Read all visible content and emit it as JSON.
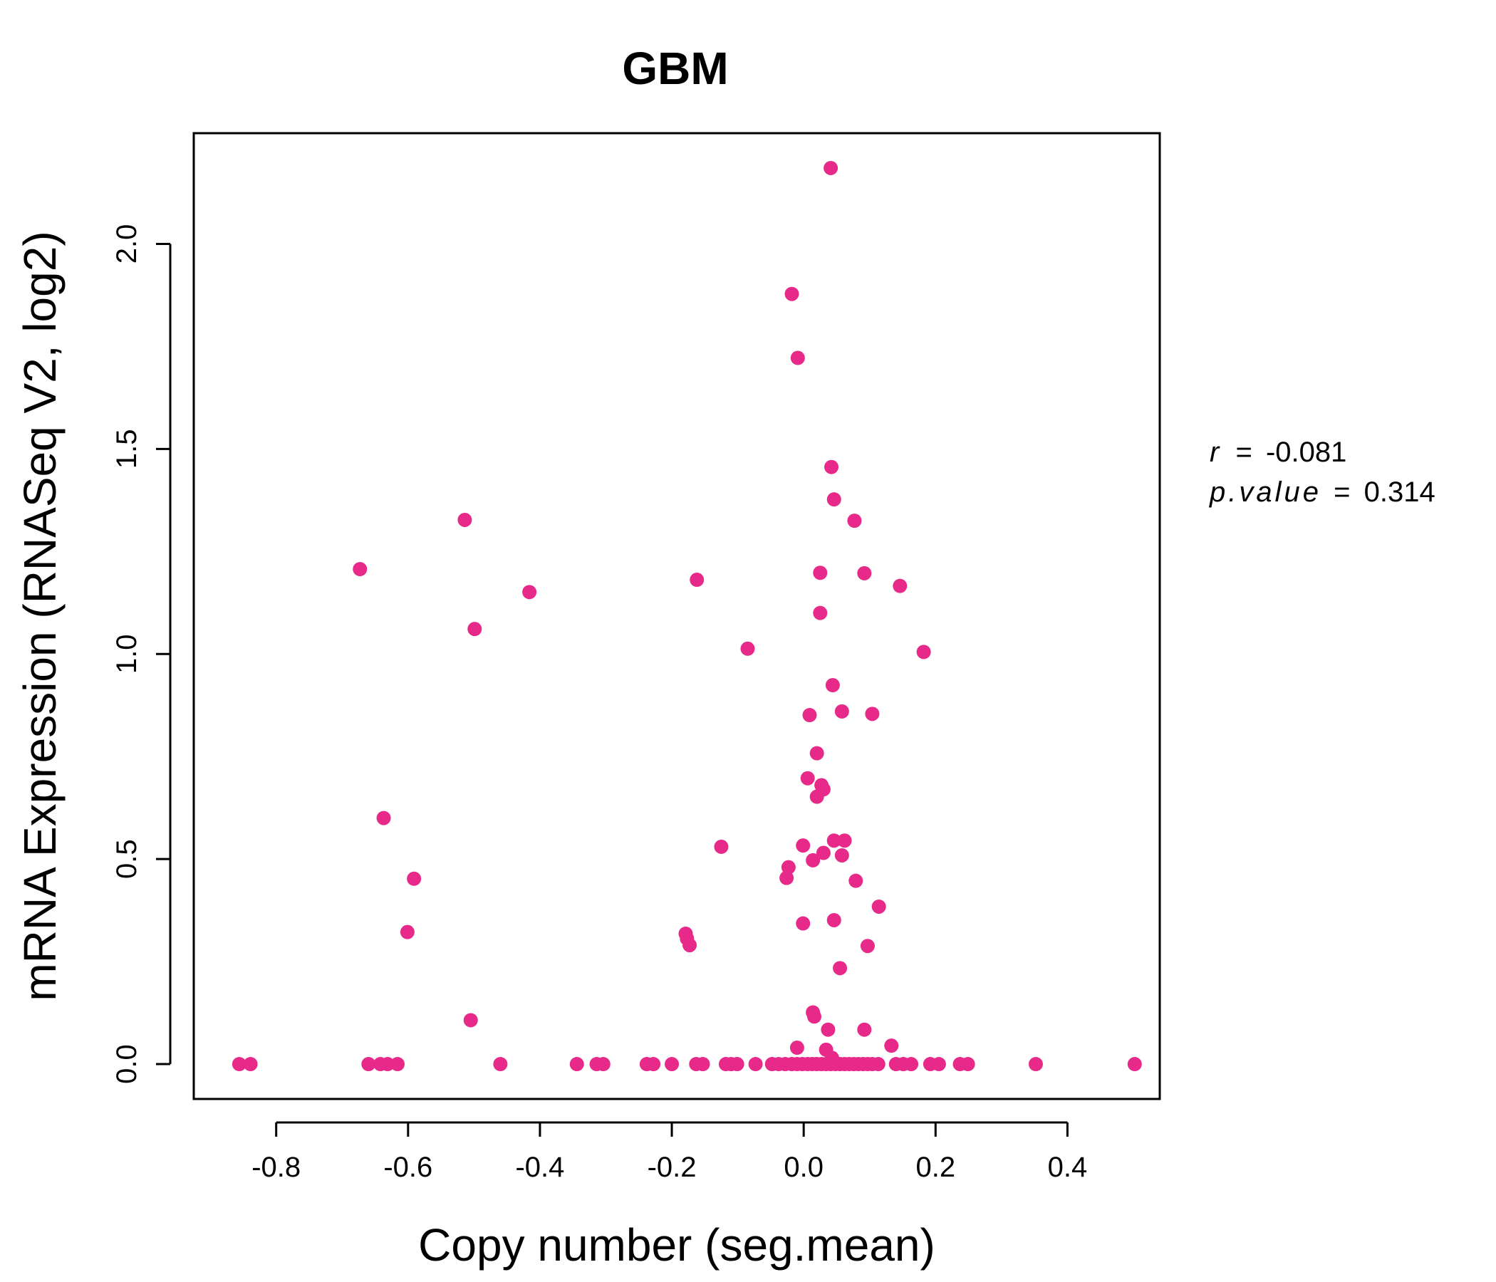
{
  "chart_data": {
    "type": "scatter",
    "title": "GBM",
    "xlabel": "Copy number (seg.mean)",
    "ylabel": "mRNA Expression (RNASeq V2, log2)",
    "xlim": [
      -0.925,
      0.54
    ],
    "ylim": [
      -0.085,
      2.27
    ],
    "xticks": [
      -0.8,
      -0.6,
      -0.4,
      -0.2,
      0.0,
      0.2,
      0.4
    ],
    "xtick_labels": [
      "-0.8",
      "-0.6",
      "-0.4",
      "-0.2",
      "0.0",
      "0.2",
      "0.4"
    ],
    "yticks": [
      0.0,
      0.5,
      1.0,
      1.5,
      2.0
    ],
    "ytick_labels": [
      "0.0",
      "0.5",
      "1.0",
      "1.5",
      "2.0"
    ],
    "grid": false,
    "point_color": "#E7298A",
    "annotations": {
      "r_label": "r",
      "r_value": "-0.081",
      "p_label": "p.value",
      "p_value": "0.314"
    },
    "points": [
      {
        "x": 0.041,
        "y": 2.185
      },
      {
        "x": -0.018,
        "y": 1.878
      },
      {
        "x": -0.009,
        "y": 1.722
      },
      {
        "x": 0.042,
        "y": 1.456
      },
      {
        "x": 0.046,
        "y": 1.377
      },
      {
        "x": 0.077,
        "y": 1.325
      },
      {
        "x": -0.514,
        "y": 1.327
      },
      {
        "x": -0.673,
        "y": 1.207
      },
      {
        "x": 0.025,
        "y": 1.198
      },
      {
        "x": 0.092,
        "y": 1.197
      },
      {
        "x": -0.162,
        "y": 1.181
      },
      {
        "x": 0.146,
        "y": 1.166
      },
      {
        "x": -0.416,
        "y": 1.151
      },
      {
        "x": 0.025,
        "y": 1.1
      },
      {
        "x": -0.499,
        "y": 1.061
      },
      {
        "x": -0.085,
        "y": 1.013
      },
      {
        "x": 0.182,
        "y": 1.005
      },
      {
        "x": 0.044,
        "y": 0.924
      },
      {
        "x": 0.058,
        "y": 0.86
      },
      {
        "x": 0.104,
        "y": 0.854
      },
      {
        "x": 0.009,
        "y": 0.851
      },
      {
        "x": 0.02,
        "y": 0.758
      },
      {
        "x": 0.006,
        "y": 0.697
      },
      {
        "x": 0.027,
        "y": 0.68
      },
      {
        "x": 0.03,
        "y": 0.67
      },
      {
        "x": 0.02,
        "y": 0.652
      },
      {
        "x": -0.637,
        "y": 0.6
      },
      {
        "x": 0.046,
        "y": 0.545
      },
      {
        "x": 0.062,
        "y": 0.545
      },
      {
        "x": -0.001,
        "y": 0.533
      },
      {
        "x": -0.125,
        "y": 0.53
      },
      {
        "x": 0.03,
        "y": 0.515
      },
      {
        "x": 0.058,
        "y": 0.509
      },
      {
        "x": 0.014,
        "y": 0.497
      },
      {
        "x": -0.023,
        "y": 0.48
      },
      {
        "x": -0.026,
        "y": 0.454
      },
      {
        "x": -0.591,
        "y": 0.452
      },
      {
        "x": 0.079,
        "y": 0.447
      },
      {
        "x": 0.114,
        "y": 0.384
      },
      {
        "x": 0.046,
        "y": 0.351
      },
      {
        "x": -0.001,
        "y": 0.343
      },
      {
        "x": -0.601,
        "y": 0.322
      },
      {
        "x": -0.179,
        "y": 0.318
      },
      {
        "x": -0.177,
        "y": 0.306
      },
      {
        "x": -0.173,
        "y": 0.29
      },
      {
        "x": 0.097,
        "y": 0.288
      },
      {
        "x": 0.055,
        "y": 0.234
      },
      {
        "x": 0.014,
        "y": 0.126
      },
      {
        "x": 0.016,
        "y": 0.116
      },
      {
        "x": -0.505,
        "y": 0.107
      },
      {
        "x": 0.037,
        "y": 0.084
      },
      {
        "x": 0.092,
        "y": 0.084
      },
      {
        "x": 0.133,
        "y": 0.045
      },
      {
        "x": -0.01,
        "y": 0.04
      },
      {
        "x": 0.034,
        "y": 0.035
      },
      {
        "x": 0.043,
        "y": 0.015
      },
      {
        "x": -0.856,
        "y": 0.0
      },
      {
        "x": -0.839,
        "y": 0.0
      },
      {
        "x": -0.66,
        "y": 0.0
      },
      {
        "x": -0.642,
        "y": 0.0
      },
      {
        "x": -0.631,
        "y": 0.0
      },
      {
        "x": -0.616,
        "y": 0.0
      },
      {
        "x": -0.46,
        "y": 0.0
      },
      {
        "x": -0.344,
        "y": 0.0
      },
      {
        "x": -0.314,
        "y": 0.0
      },
      {
        "x": -0.304,
        "y": 0.0
      },
      {
        "x": -0.238,
        "y": 0.0
      },
      {
        "x": -0.228,
        "y": 0.0
      },
      {
        "x": -0.2,
        "y": 0.0
      },
      {
        "x": -0.163,
        "y": 0.0
      },
      {
        "x": -0.153,
        "y": 0.0
      },
      {
        "x": -0.118,
        "y": 0.0
      },
      {
        "x": -0.11,
        "y": 0.0
      },
      {
        "x": -0.101,
        "y": 0.0
      },
      {
        "x": -0.073,
        "y": 0.0
      },
      {
        "x": -0.048,
        "y": 0.0
      },
      {
        "x": -0.038,
        "y": 0.0
      },
      {
        "x": -0.028,
        "y": 0.0
      },
      {
        "x": -0.018,
        "y": 0.0
      },
      {
        "x": -0.01,
        "y": 0.0
      },
      {
        "x": -0.002,
        "y": 0.0
      },
      {
        "x": 0.006,
        "y": 0.0
      },
      {
        "x": 0.013,
        "y": 0.0
      },
      {
        "x": 0.02,
        "y": 0.0
      },
      {
        "x": 0.027,
        "y": 0.0
      },
      {
        "x": 0.034,
        "y": 0.0
      },
      {
        "x": 0.041,
        "y": 0.0
      },
      {
        "x": 0.048,
        "y": 0.0
      },
      {
        "x": 0.055,
        "y": 0.0
      },
      {
        "x": 0.062,
        "y": 0.0
      },
      {
        "x": 0.069,
        "y": 0.0
      },
      {
        "x": 0.076,
        "y": 0.0
      },
      {
        "x": 0.083,
        "y": 0.0
      },
      {
        "x": 0.09,
        "y": 0.0
      },
      {
        "x": 0.097,
        "y": 0.0
      },
      {
        "x": 0.104,
        "y": 0.0
      },
      {
        "x": 0.113,
        "y": 0.0
      },
      {
        "x": 0.14,
        "y": 0.0
      },
      {
        "x": 0.151,
        "y": 0.0
      },
      {
        "x": 0.163,
        "y": 0.0
      },
      {
        "x": 0.192,
        "y": 0.0
      },
      {
        "x": 0.205,
        "y": 0.0
      },
      {
        "x": 0.237,
        "y": 0.0
      },
      {
        "x": 0.249,
        "y": 0.0
      },
      {
        "x": 0.352,
        "y": 0.0
      },
      {
        "x": 0.502,
        "y": 0.0
      }
    ]
  }
}
